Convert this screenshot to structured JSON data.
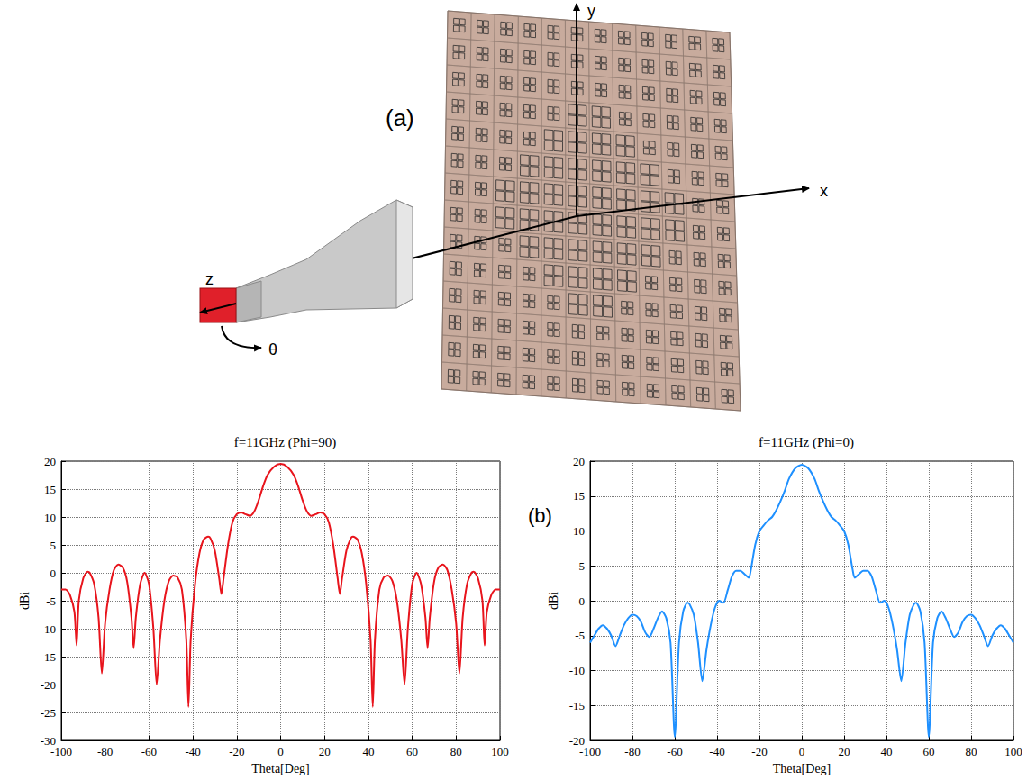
{
  "panel_labels": [
    "(a)",
    "(b)"
  ],
  "diagram": {
    "axis_labels": {
      "x": "x",
      "y": "y",
      "z": "z",
      "angle": "θ"
    }
  },
  "chart_data": [
    {
      "type": "line",
      "title": "f=11GHz (Phi=90)",
      "xlabel": "Theta[Deg]",
      "ylabel": "dBi",
      "xlim": [
        -100,
        100
      ],
      "xticks": [
        -100,
        -80,
        -60,
        -40,
        -20,
        0,
        20,
        40,
        60,
        80,
        100
      ],
      "ylim": [
        -30,
        20
      ],
      "yticks": [
        -30,
        -25,
        -20,
        -15,
        -10,
        -5,
        0,
        5,
        10,
        15,
        20
      ],
      "grid": true,
      "color": "#e8141c",
      "x": [
        -100,
        -98,
        -96,
        -94,
        -93,
        -92,
        -90,
        -88,
        -87,
        -85,
        -83,
        -81.5,
        -80,
        -78,
        -76,
        -74,
        -72,
        -70,
        -68,
        -67,
        -66,
        -64,
        -62,
        -60,
        -58,
        -56.5,
        -55,
        -53,
        -51,
        -49,
        -47,
        -45,
        -43,
        -42,
        -41,
        -39,
        -37,
        -35,
        -33,
        -32,
        -30,
        -28,
        -27,
        -26,
        -24,
        -22,
        -20,
        -18,
        -16,
        -14,
        -12,
        -10,
        -8,
        -6,
        -3,
        0,
        3,
        6,
        8,
        10,
        12,
        14,
        16,
        18,
        20,
        22,
        24,
        26,
        27,
        28,
        30,
        32,
        33,
        35,
        37,
        39,
        41,
        42,
        43,
        45,
        47,
        49,
        51,
        53,
        55,
        56.5,
        58,
        60,
        62,
        64,
        66,
        67,
        68,
        70,
        72,
        74,
        76,
        78,
        80,
        81.5,
        83,
        85,
        87,
        88,
        90,
        92,
        93,
        94,
        96,
        98,
        100
      ],
      "values": [
        -3,
        -3,
        -4,
        -7,
        -13,
        -5,
        -1,
        0.2,
        0,
        -2,
        -8,
        -18,
        -9,
        -3,
        0.5,
        1.5,
        1,
        -1.5,
        -8,
        -13.5,
        -8,
        -2,
        0,
        -2,
        -10,
        -20,
        -12,
        -5,
        -1.5,
        -0.5,
        -0.8,
        -3,
        -12,
        -24,
        -12,
        -2,
        3.5,
        6,
        6.5,
        6.2,
        4,
        -1,
        -3.8,
        -1,
        5,
        9,
        10.5,
        10.8,
        10.5,
        10.2,
        11,
        13,
        15.5,
        17.5,
        19,
        19.5,
        19,
        17.5,
        15.5,
        13,
        11,
        10.2,
        10.5,
        10.8,
        10.5,
        9,
        5,
        -1,
        -3.8,
        -1,
        4,
        6.2,
        6.5,
        6,
        3.5,
        -2,
        -12,
        -24,
        -12,
        -3,
        -0.8,
        -0.5,
        -1.5,
        -5,
        -12,
        -20,
        -10,
        -2,
        0,
        -2,
        -8,
        -13.5,
        -8,
        -1.5,
        1,
        1.5,
        0.5,
        -3,
        -9,
        -18,
        -8,
        -2,
        0,
        0.2,
        -1,
        -5,
        -13,
        -7,
        -4,
        -3,
        -3
      ]
    },
    {
      "type": "line",
      "title": "f=11GHz (Phi=0)",
      "xlabel": "Theta[Deg]",
      "ylabel": "dBi",
      "xlim": [
        -100,
        100
      ],
      "xticks": [
        -100,
        -80,
        -60,
        -40,
        -20,
        0,
        20,
        40,
        60,
        80,
        100
      ],
      "ylim": [
        -20,
        20
      ],
      "yticks": [
        -20,
        -15,
        -10,
        -5,
        0,
        5,
        10,
        15,
        20
      ],
      "grid": true,
      "color": "#1e90ff",
      "x": [
        -100,
        -98,
        -96,
        -94,
        -92,
        -90,
        -88,
        -86,
        -84,
        -82,
        -80,
        -78,
        -76,
        -74,
        -72,
        -70,
        -68,
        -66,
        -64,
        -62,
        -60,
        -58,
        -56,
        -54,
        -53,
        -51,
        -49,
        -47,
        -45,
        -43,
        -41,
        -39,
        -37,
        -35,
        -33,
        -31,
        -29,
        -27,
        -25,
        -24,
        -22,
        -20,
        -18,
        -16,
        -14,
        -12,
        -10,
        -8,
        -6,
        -3,
        0,
        3,
        6,
        8,
        10,
        12,
        14,
        16,
        18,
        20,
        22,
        24,
        25,
        27,
        29,
        31,
        33,
        35,
        37,
        39,
        41,
        43,
        45,
        47,
        49,
        51,
        53,
        54,
        56,
        58,
        60,
        62,
        64,
        66,
        68,
        70,
        72,
        74,
        76,
        78,
        80,
        82,
        84,
        86,
        88,
        90,
        92,
        94,
        96,
        98,
        100
      ],
      "values": [
        -6,
        -5,
        -4,
        -3.5,
        -4,
        -5,
        -6.5,
        -5,
        -3.5,
        -2.5,
        -2,
        -2.2,
        -3,
        -4.5,
        -5.2,
        -4,
        -2.5,
        -1.5,
        -2.5,
        -6,
        -19.5,
        -6,
        -1.5,
        -0.3,
        -0.5,
        -2,
        -6,
        -11.5,
        -7,
        -3.5,
        -1,
        0,
        -0.3,
        1.5,
        3.5,
        4.3,
        4.3,
        3.8,
        3.3,
        4.5,
        8,
        10,
        10.8,
        11.5,
        12,
        13,
        14.3,
        15.8,
        17.5,
        19,
        19.5,
        19,
        17.5,
        15.8,
        14.3,
        13,
        12,
        11.5,
        10.8,
        10,
        8,
        4.5,
        3.3,
        3.8,
        4.3,
        4.3,
        3.5,
        1.5,
        -0.3,
        0,
        -1,
        -3.5,
        -7,
        -11.5,
        -6,
        -2,
        -0.5,
        -0.3,
        -1.5,
        -6,
        -19.5,
        -6,
        -2.5,
        -1.5,
        -2.5,
        -4,
        -5.2,
        -4.5,
        -3,
        -2.2,
        -2,
        -2.5,
        -3.5,
        -5,
        -6.5,
        -5,
        -4,
        -3.5,
        -4,
        -5,
        -6
      ]
    }
  ]
}
